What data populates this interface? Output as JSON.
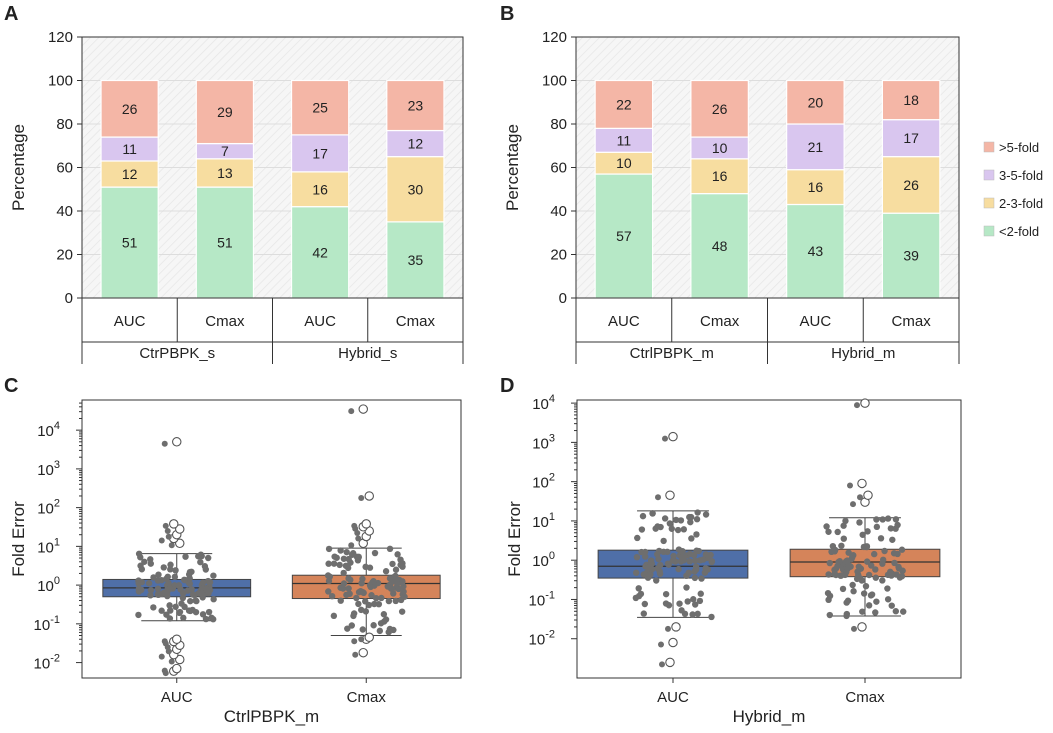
{
  "panel_letters": [
    "A",
    "B",
    "C",
    "D"
  ],
  "legend": {
    "items": [
      {
        "label": ">5-fold",
        "color": "#f4b6a6"
      },
      {
        "label": "3-5-fold",
        "color": "#d9c6ef"
      },
      {
        "label": "2-3-fold",
        "color": "#f7dda0"
      },
      {
        "label": "<2-fold",
        "color": "#b6e8c6"
      }
    ]
  },
  "chart_data": [
    {
      "panel": "A",
      "type": "bar",
      "stacked": true,
      "ylabel": "Percentage",
      "ylim": [
        0,
        120
      ],
      "yticks": [
        0,
        20,
        40,
        60,
        80,
        100,
        120
      ],
      "categories": [
        "AUC",
        "Cmax",
        "AUC",
        "Cmax"
      ],
      "groups": [
        "CtrPBPK_s",
        "Hybrid_s"
      ],
      "series": [
        {
          "name": "<2-fold",
          "values": [
            51,
            51,
            42,
            35
          ]
        },
        {
          "name": "2-3-fold",
          "values": [
            12,
            13,
            16,
            30
          ]
        },
        {
          "name": "3-5-fold",
          "values": [
            11,
            7,
            17,
            12
          ]
        },
        {
          "name": ">5-fold",
          "values": [
            26,
            29,
            25,
            23
          ]
        }
      ],
      "grid": true
    },
    {
      "panel": "B",
      "type": "bar",
      "stacked": true,
      "ylabel": "Percentage",
      "ylim": [
        0,
        120
      ],
      "yticks": [
        0,
        20,
        40,
        60,
        80,
        100,
        120
      ],
      "categories": [
        "AUC",
        "Cmax",
        "AUC",
        "Cmax"
      ],
      "groups": [
        "CtrlPBPK_m",
        "Hybrid_m"
      ],
      "series": [
        {
          "name": "<2-fold",
          "values": [
            57,
            48,
            43,
            39
          ]
        },
        {
          "name": "2-3-fold",
          "values": [
            10,
            16,
            16,
            26
          ]
        },
        {
          "name": "3-5-fold",
          "values": [
            11,
            10,
            21,
            17
          ]
        },
        {
          "name": ">5-fold",
          "values": [
            22,
            26,
            20,
            18
          ]
        }
      ],
      "grid": true,
      "legend_position": "right"
    },
    {
      "panel": "C",
      "type": "box",
      "ylabel": "Fold Error",
      "xlabel": "CtrlPBPK_m",
      "yscale": "log",
      "ylim": [
        0.004,
        60000
      ],
      "ytick_exponents": [
        -2,
        -1,
        0,
        1,
        2,
        3,
        4
      ],
      "categories": [
        "AUC",
        "Cmax"
      ],
      "boxes": [
        {
          "name": "AUC",
          "color": "#4f6fa8",
          "whisker_low": 0.12,
          "q1": 0.5,
          "median": 0.85,
          "q3": 1.4,
          "whisker_high": 6.5,
          "outliers": [
            0.006,
            0.007,
            0.012,
            0.016,
            0.022,
            0.028,
            0.035,
            0.04,
            12,
            16,
            20,
            28,
            38,
            5000
          ]
        },
        {
          "name": "Cmax",
          "color": "#d5845a",
          "whisker_low": 0.05,
          "q1": 0.45,
          "median": 1.1,
          "q3": 1.8,
          "whisker_high": 9,
          "outliers": [
            0.018,
            0.04,
            0.045,
            12,
            18,
            25,
            32,
            38,
            200,
            35000
          ]
        }
      ]
    },
    {
      "panel": "D",
      "type": "box",
      "ylabel": "Fold Error",
      "xlabel": "Hybrid_m",
      "yscale": "log",
      "ylim": [
        0.001,
        12000
      ],
      "ytick_exponents": [
        -2,
        -1,
        0,
        1,
        2,
        3,
        4
      ],
      "categories": [
        "AUC",
        "Cmax"
      ],
      "boxes": [
        {
          "name": "AUC",
          "color": "#4f6fa8",
          "whisker_low": 0.035,
          "q1": 0.35,
          "median": 0.7,
          "q3": 1.8,
          "whisker_high": 18,
          "outliers": [
            0.0025,
            0.008,
            0.02,
            45,
            1400
          ]
        },
        {
          "name": "Cmax",
          "color": "#d5845a",
          "whisker_low": 0.038,
          "q1": 0.38,
          "median": 0.9,
          "q3": 1.9,
          "whisker_high": 12,
          "outliers": [
            0.02,
            30,
            45,
            90,
            10000
          ]
        }
      ]
    }
  ]
}
